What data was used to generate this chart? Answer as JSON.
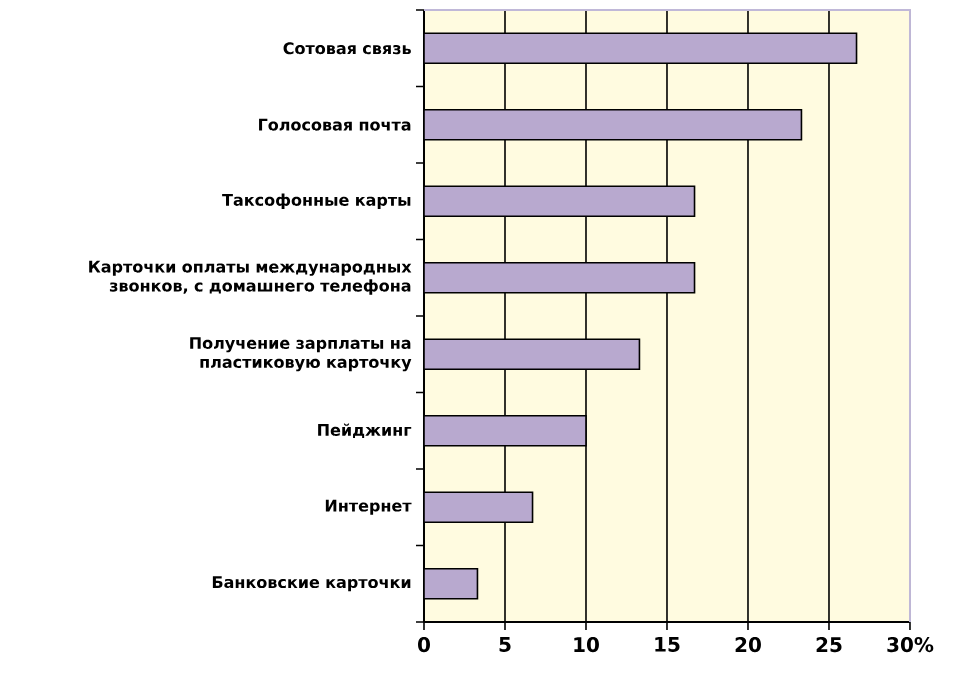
{
  "chart_data": {
    "type": "bar",
    "orientation": "horizontal",
    "categories": [
      "Сотовая связь",
      "Голосовая почта",
      "Таксофонные карты",
      "Карточки оплаты международных звонков, с домашнего телефона",
      "Получение зарплаты на пластиковую карточку",
      "Пейджинг",
      "Интернет",
      "Банковские карточки"
    ],
    "values": [
      26.7,
      23.3,
      16.7,
      16.7,
      13.3,
      10,
      6.7,
      3.3
    ],
    "color": "#b8a9cf",
    "xlim": [
      0,
      30
    ],
    "xticks": [
      0,
      5,
      10,
      15,
      20,
      25,
      {
        "value": 30,
        "label": "30%"
      }
    ],
    "grid": "x"
  }
}
